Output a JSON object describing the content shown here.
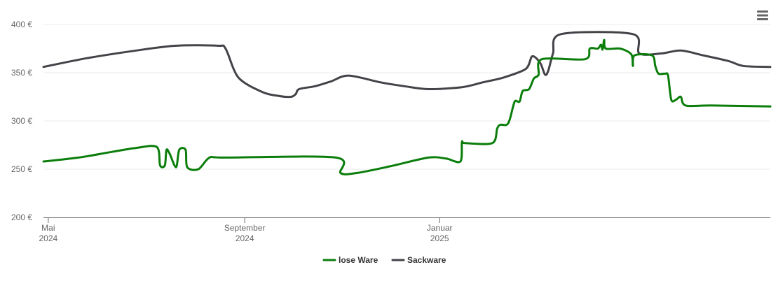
{
  "chart_data": {
    "type": "line",
    "title": "",
    "xlabel": "",
    "ylabel": "",
    "ylim": [
      200,
      400
    ],
    "yticks": [
      {
        "value": 200,
        "label": "200 €"
      },
      {
        "value": 250,
        "label": "250 €"
      },
      {
        "value": 300,
        "label": "300 €"
      },
      {
        "value": 350,
        "label": "350 €"
      },
      {
        "value": 400,
        "label": "400 €"
      }
    ],
    "xlim": [
      "2024-04-28",
      "2025-07-27"
    ],
    "xticks": [
      {
        "date": "2024-05-01",
        "label1": "Mai",
        "label2": "2024"
      },
      {
        "date": "2024-09-01",
        "label1": "September",
        "label2": "2024"
      },
      {
        "date": "2025-01-01",
        "label1": "Januar",
        "label2": "2025"
      }
    ],
    "grid": true,
    "legend_position": "bottom-center",
    "series": [
      {
        "name": "lose Ware",
        "color": "#0a7d0a",
        "points": [
          [
            "2024-04-28",
            258
          ],
          [
            "2024-05-20",
            262
          ],
          [
            "2024-06-10",
            268
          ],
          [
            "2024-06-25",
            272
          ],
          [
            "2024-07-08",
            273
          ],
          [
            "2024-07-10",
            254
          ],
          [
            "2024-07-13",
            254
          ],
          [
            "2024-07-14",
            270
          ],
          [
            "2024-07-16",
            266
          ],
          [
            "2024-07-20",
            252
          ],
          [
            "2024-07-22",
            270
          ],
          [
            "2024-07-26",
            270
          ],
          [
            "2024-07-27",
            252
          ],
          [
            "2024-08-03",
            250
          ],
          [
            "2024-08-10",
            262
          ],
          [
            "2024-08-20",
            262
          ],
          [
            "2024-10-28",
            262
          ],
          [
            "2024-10-31",
            246
          ],
          [
            "2024-11-10",
            246
          ],
          [
            "2024-12-01",
            253
          ],
          [
            "2024-12-25",
            262
          ],
          [
            "2025-01-05",
            261
          ],
          [
            "2025-01-14",
            258
          ],
          [
            "2025-01-15",
            278
          ],
          [
            "2025-01-17",
            277
          ],
          [
            "2025-02-03",
            277
          ],
          [
            "2025-02-06",
            292
          ],
          [
            "2025-02-08",
            296
          ],
          [
            "2025-02-12",
            296
          ],
          [
            "2025-02-14",
            302
          ],
          [
            "2025-02-17",
            320
          ],
          [
            "2025-02-20",
            320
          ],
          [
            "2025-02-22",
            331
          ],
          [
            "2025-02-26",
            333
          ],
          [
            "2025-03-01",
            344
          ],
          [
            "2025-03-04",
            348
          ],
          [
            "2025-03-06",
            364
          ],
          [
            "2025-04-02",
            364
          ],
          [
            "2025-04-05",
            375
          ],
          [
            "2025-04-10",
            375
          ],
          [
            "2025-04-12",
            379
          ],
          [
            "2025-04-13",
            374
          ],
          [
            "2025-04-14",
            384
          ],
          [
            "2025-04-15",
            375
          ],
          [
            "2025-04-24",
            375
          ],
          [
            "2025-05-01",
            369
          ],
          [
            "2025-05-02",
            357
          ],
          [
            "2025-05-03",
            368
          ],
          [
            "2025-05-14",
            368
          ],
          [
            "2025-05-16",
            357
          ],
          [
            "2025-05-18",
            349
          ],
          [
            "2025-05-22",
            349
          ],
          [
            "2025-05-24",
            347
          ],
          [
            "2025-05-26",
            322
          ],
          [
            "2025-05-29",
            322
          ],
          [
            "2025-06-01",
            325
          ],
          [
            "2025-06-04",
            316
          ],
          [
            "2025-06-20",
            316
          ],
          [
            "2025-07-27",
            315
          ]
        ]
      },
      {
        "name": "Sackware",
        "color": "#434348",
        "points": [
          [
            "2024-04-28",
            356
          ],
          [
            "2024-05-25",
            365
          ],
          [
            "2024-06-25",
            373
          ],
          [
            "2024-07-20",
            378
          ],
          [
            "2024-08-15",
            378
          ],
          [
            "2024-08-20",
            375
          ],
          [
            "2024-08-28",
            345
          ],
          [
            "2024-09-12",
            330
          ],
          [
            "2024-09-22",
            326
          ],
          [
            "2024-09-30",
            325
          ],
          [
            "2024-10-03",
            328
          ],
          [
            "2024-10-05",
            333
          ],
          [
            "2024-10-15",
            336
          ],
          [
            "2024-10-25",
            341
          ],
          [
            "2024-11-05",
            347
          ],
          [
            "2024-11-25",
            340
          ],
          [
            "2024-12-10",
            336
          ],
          [
            "2024-12-25",
            333
          ],
          [
            "2025-01-15",
            335
          ],
          [
            "2025-01-28",
            340
          ],
          [
            "2025-02-10",
            345
          ],
          [
            "2025-02-24",
            354
          ],
          [
            "2025-02-28",
            367
          ],
          [
            "2025-03-05",
            360
          ],
          [
            "2025-03-08",
            348
          ],
          [
            "2025-03-10",
            352
          ],
          [
            "2025-03-13",
            370
          ],
          [
            "2025-03-18",
            390
          ],
          [
            "2025-05-02",
            390
          ],
          [
            "2025-05-06",
            370
          ],
          [
            "2025-05-20",
            370
          ],
          [
            "2025-06-01",
            373
          ],
          [
            "2025-06-15",
            368
          ],
          [
            "2025-07-01",
            362
          ],
          [
            "2025-07-10",
            357
          ],
          [
            "2025-07-27",
            356
          ]
        ]
      }
    ]
  },
  "ui": {
    "menu_icon": "hamburger-menu-icon"
  }
}
